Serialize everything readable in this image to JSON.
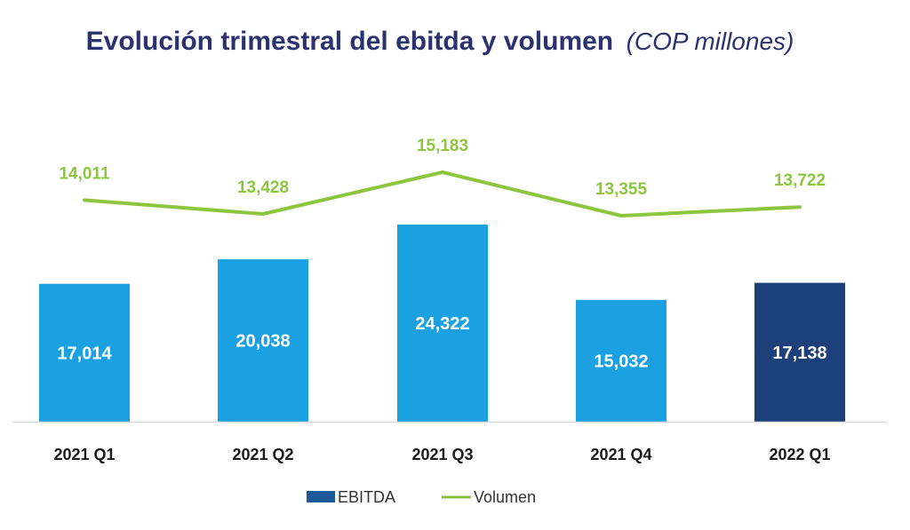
{
  "chart_data": {
    "type": "bar",
    "title": "Evolución trimestral del ebitda y volumen",
    "subtitle": "(COP millones)",
    "categories": [
      "2021 Q1",
      "2021 Q2",
      "2021 Q3",
      "2021 Q4",
      "2022 Q1"
    ],
    "series": [
      {
        "name": "EBITDA",
        "type": "bar",
        "values": [
          17014,
          20038,
          24322,
          15032,
          17138
        ],
        "labels": [
          "17,014",
          "20,038",
          "24,322",
          "15,032",
          "17,138"
        ],
        "colors": [
          "#1ba1e2",
          "#1ba1e2",
          "#1ba1e2",
          "#1ba1e2",
          "#1d3f7a"
        ]
      },
      {
        "name": "Volumen",
        "type": "line",
        "values": [
          14011,
          13428,
          15183,
          13355,
          13722
        ],
        "labels": [
          "14,011",
          "13,428",
          "15,183",
          "13,355",
          "13,722"
        ],
        "color": "#8cc63f"
      }
    ],
    "legend_position": "bottom-center",
    "grid": false,
    "legend_swatch_color": "#1d5a9a"
  }
}
